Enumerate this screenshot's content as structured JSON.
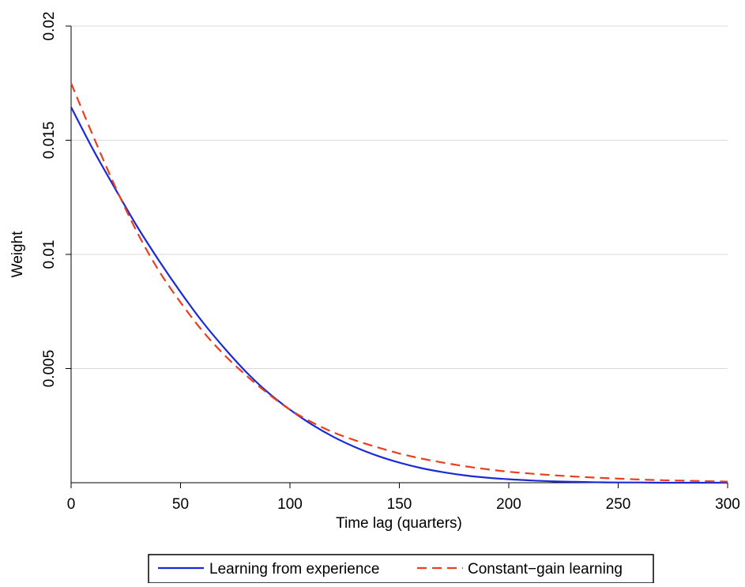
{
  "chart_data": {
    "type": "line",
    "title": "",
    "xlabel": "Time lag (quarters)",
    "ylabel": "Weight",
    "xlim": [
      0,
      300
    ],
    "ylim": [
      0,
      0.02
    ],
    "x_ticks": [
      0,
      50,
      100,
      150,
      200,
      250,
      300
    ],
    "x_tick_labels": [
      "0",
      "50",
      "100",
      "150",
      "200",
      "250",
      "300"
    ],
    "y_ticks": [
      0.005,
      0.01,
      0.015,
      0.02
    ],
    "y_tick_labels": [
      "0.005",
      "0.01",
      "0.015",
      "0.02"
    ],
    "grid": "horizontal",
    "legend_position": "bottom",
    "x": [
      0,
      10,
      20,
      30,
      40,
      50,
      60,
      70,
      80,
      90,
      100,
      110,
      120,
      130,
      140,
      150,
      160,
      170,
      180,
      190,
      200,
      210,
      220,
      230,
      240,
      250,
      260,
      270,
      280,
      290,
      300
    ],
    "series": [
      {
        "name": "Learning from experience",
        "color": "#1a2bd6",
        "style": "solid",
        "values": [
          0.01645,
          0.0146,
          0.0129,
          0.01125,
          0.00975,
          0.00835,
          0.00705,
          0.0059,
          0.00485,
          0.00395,
          0.0032,
          0.00255,
          0.002,
          0.00155,
          0.00118,
          0.00088,
          0.00064,
          0.00046,
          0.00032,
          0.00022,
          0.00015,
          0.0001,
          6e-05,
          4e-05,
          2e-05,
          1e-05,
          1e-05,
          0.0,
          0.0,
          0.0,
          0.0
        ]
      },
      {
        "name": "Constant−gain learning",
        "color": "#e8401c",
        "style": "dashed",
        "values": [
          0.0175,
          0.0152,
          0.013,
          0.011,
          0.0093,
          0.0079,
          0.00665,
          0.0056,
          0.0047,
          0.0039,
          0.0032,
          0.00265,
          0.0022,
          0.00185,
          0.00155,
          0.00128,
          0.00106,
          0.00088,
          0.00072,
          0.00059,
          0.00048,
          0.0004,
          0.00033,
          0.00027,
          0.00022,
          0.00018,
          0.00014,
          0.00011,
          9e-05,
          7e-05,
          5e-05
        ]
      }
    ]
  }
}
